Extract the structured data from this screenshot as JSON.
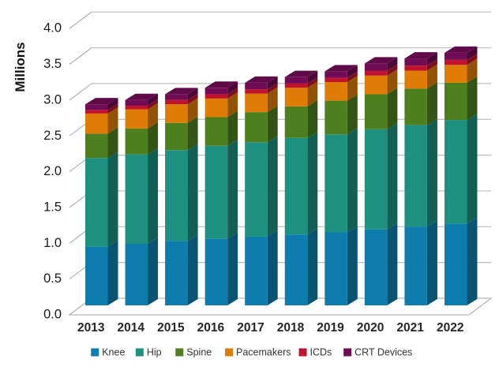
{
  "chart_data": {
    "type": "bar",
    "subtype": "3d-stacked-column",
    "title": "",
    "xlabel": "",
    "ylabel": "Millions",
    "categories": [
      "2013",
      "2014",
      "2015",
      "2016",
      "2017",
      "2018",
      "2019",
      "2020",
      "2021",
      "2022"
    ],
    "series": [
      {
        "name": "Knee",
        "color": "#0E7DAE",
        "values": [
          0.82,
          0.86,
          0.9,
          0.93,
          0.96,
          0.99,
          1.02,
          1.06,
          1.1,
          1.14
        ]
      },
      {
        "name": "Hip",
        "color": "#1E9080",
        "values": [
          1.24,
          1.25,
          1.27,
          1.3,
          1.32,
          1.35,
          1.37,
          1.4,
          1.42,
          1.45
        ]
      },
      {
        "name": "Spine",
        "color": "#4E7F1E",
        "values": [
          0.34,
          0.36,
          0.38,
          0.4,
          0.42,
          0.44,
          0.47,
          0.49,
          0.51,
          0.52
        ]
      },
      {
        "name": "Pacemakers",
        "color": "#DE7C05",
        "values": [
          0.28,
          0.27,
          0.26,
          0.26,
          0.26,
          0.26,
          0.26,
          0.26,
          0.25,
          0.25
        ]
      },
      {
        "name": "ICDs",
        "color": "#C2132E",
        "values": [
          0.05,
          0.05,
          0.06,
          0.06,
          0.06,
          0.06,
          0.06,
          0.07,
          0.07,
          0.07
        ]
      },
      {
        "name": "CRT Devices",
        "color": "#700C55",
        "values": [
          0.08,
          0.08,
          0.08,
          0.09,
          0.09,
          0.09,
          0.09,
          0.1,
          0.1,
          0.1
        ]
      }
    ],
    "y_axis": {
      "min": 0,
      "max": 4,
      "step": 0.5,
      "tick_labels": [
        "0.0",
        "0.5",
        "1.0",
        "1.5",
        "2.0",
        "2.5",
        "3.0",
        "3.5",
        "4.0"
      ]
    },
    "grid": true,
    "legend_position": "bottom",
    "style": {
      "gridline_color": "#BDBDBD",
      "axis_connector_color": "#A6A6A6",
      "floor_edge_color": "#A6A6A6",
      "tick_label_color": "#1A1A1A",
      "category_label_color": "#262626",
      "legend_text_color": "#333333",
      "background": "#FFFFFF"
    }
  }
}
